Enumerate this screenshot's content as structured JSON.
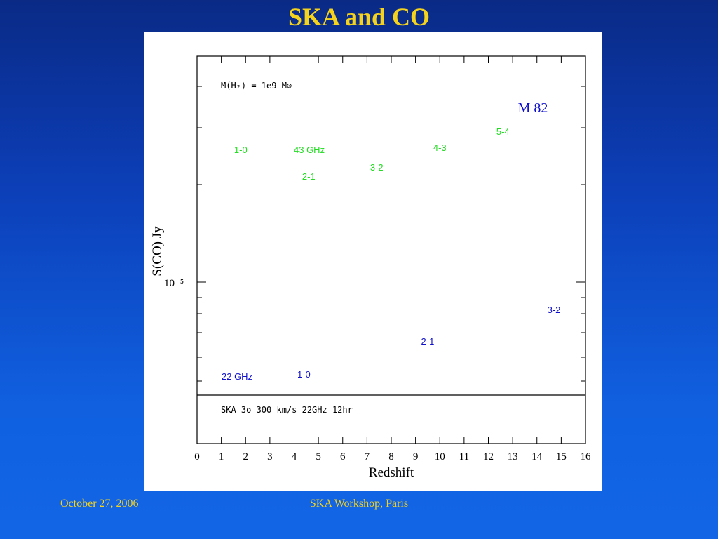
{
  "slide": {
    "title": "SKA and CO",
    "footer_date": "October 27, 2006",
    "footer_event": "SKA Workshop, Paris"
  },
  "colors": {
    "title": "#f5d21c",
    "background_top": "#0a2a86",
    "background_bottom": "#1266e6",
    "label_green": "#22dd22",
    "label_blue": "#1010cc",
    "axes": "#000000"
  },
  "chart_data": {
    "type": "scatter",
    "xlabel": "Redshift",
    "ylabel": "S(CO) Jy",
    "xlim": [
      0,
      16
    ],
    "x_ticks": [
      0,
      1,
      2,
      3,
      4,
      5,
      6,
      7,
      8,
      9,
      10,
      11,
      12,
      13,
      14,
      15,
      16
    ],
    "y_scale": "log",
    "y_tick_label": "10⁻⁵",
    "grid": false,
    "annotations": {
      "mass": "M(H₂) = 1e9 M⊙",
      "source": "M 82",
      "ska_limit": "SKA 3σ 300 km/s  22GHz 12hr"
    },
    "series": [
      {
        "name": "43 GHz",
        "color": "#22dd22",
        "points": [
          {
            "label": "1-0",
            "x": 1.8
          },
          {
            "label": "2-1",
            "x": 4.6
          },
          {
            "label": "3-2",
            "x": 7.4
          },
          {
            "label": "4-3",
            "x": 10.0
          },
          {
            "label": "5-4",
            "x": 12.6
          }
        ]
      },
      {
        "name": "22 GHz",
        "color": "#1010cc",
        "points": [
          {
            "label": "1-0",
            "x": 4.4
          },
          {
            "label": "2-1",
            "x": 9.5
          },
          {
            "label": "3-2",
            "x": 14.7
          }
        ]
      }
    ]
  }
}
